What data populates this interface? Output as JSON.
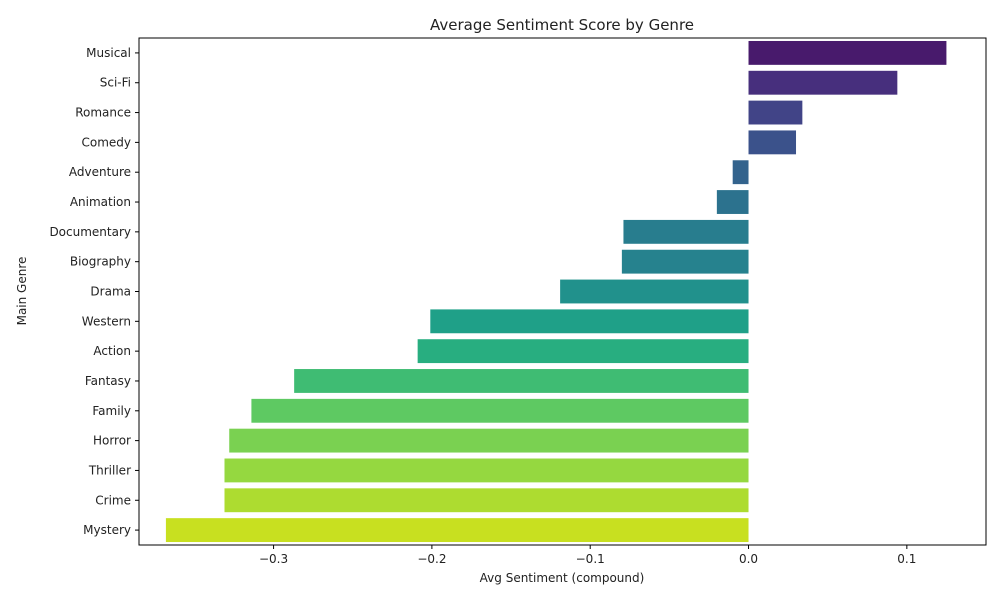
{
  "chart_data": {
    "type": "bar",
    "orientation": "horizontal",
    "title": "Average Sentiment Score by Genre",
    "xlabel": "Avg Sentiment (compound)",
    "ylabel": "Main Genre",
    "xlim": [
      -0.385,
      0.15
    ],
    "xticks": [
      -0.3,
      -0.2,
      -0.1,
      0.0,
      0.1
    ],
    "xtick_labels": [
      "−0.3",
      "−0.2",
      "−0.1",
      "0.0",
      "0.1"
    ],
    "grid": false,
    "legend": "none",
    "categories": [
      "Musical",
      "Sci-Fi",
      "Romance",
      "Comedy",
      "Adventure",
      "Animation",
      "Documentary",
      "Biography",
      "Drama",
      "Western",
      "Action",
      "Fantasy",
      "Family",
      "Horror",
      "Thriller",
      "Crime",
      "Mystery"
    ],
    "values": [
      0.125,
      0.094,
      0.034,
      0.03,
      -0.01,
      -0.02,
      -0.079,
      -0.08,
      -0.119,
      -0.201,
      -0.209,
      -0.287,
      -0.314,
      -0.328,
      -0.331,
      -0.331,
      -0.368
    ],
    "colors": [
      "#481a6c",
      "#472f7d",
      "#414487",
      "#3b528b",
      "#33638d",
      "#2c728e",
      "#287d8e",
      "#26828e",
      "#21918c",
      "#1fa088",
      "#28ae80",
      "#3fbc73",
      "#5ec962",
      "#7ad151",
      "#95d840",
      "#addc30",
      "#c8e020"
    ]
  }
}
